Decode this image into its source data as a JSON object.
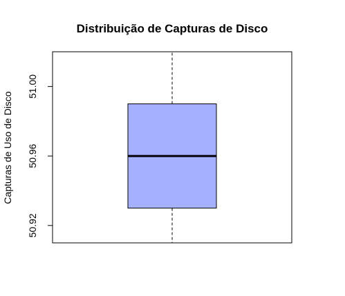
{
  "chart_data": {
    "type": "boxplot",
    "title": "Distribuição de Capturas de Disco",
    "xlabel": "",
    "ylabel": "Capturas de Uso de Disco",
    "ylim": [
      50.91,
      51.02
    ],
    "yticks": [
      50.92,
      50.96,
      51.0
    ],
    "ytick_labels": [
      "50.92",
      "50.96",
      "51.00"
    ],
    "box": {
      "whisker_low": 50.91,
      "q1": 50.93,
      "median": 50.96,
      "q3": 50.99,
      "whisker_high": 51.02
    },
    "box_color": "#a5b0ff",
    "grid": false
  }
}
